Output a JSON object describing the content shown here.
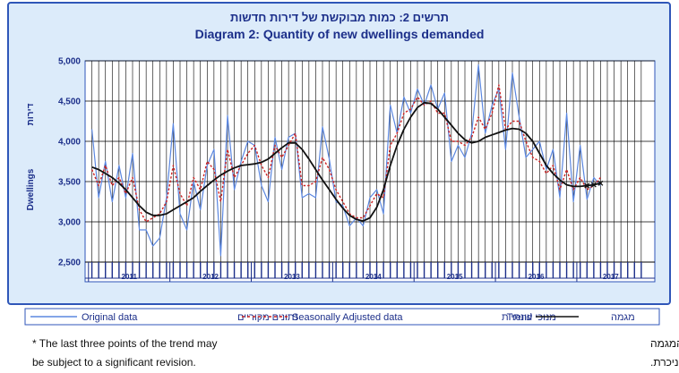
{
  "chart_data": {
    "type": "line",
    "title_he": "תרשים 2: כמות מבוקשת של דירות חדשות",
    "title_en": "Diagram 2: Quantity of new dwellings demanded",
    "ylabel_en": "Dwellings",
    "ylabel_he": "דירות",
    "ylim": [
      2500,
      5000
    ],
    "yticks": [
      2500,
      3000,
      3500,
      4000,
      4500,
      5000
    ],
    "ytick_labels": [
      "2,500",
      "3,000",
      "3,500",
      "4,000",
      "4,500",
      "5,000"
    ],
    "years": [
      "2011",
      "2012",
      "2013",
      "2014",
      "2015",
      "2016",
      "2017"
    ],
    "months_per_year": 12,
    "months_in_last_year": 10,
    "legend_placement": "bottom",
    "series": [
      {
        "name_en": "Original data",
        "name_he": "נתונים מקוריים",
        "color": "#5b87e0",
        "style": "solid",
        "values": [
          4150,
          3300,
          3750,
          3250,
          3700,
          3300,
          3850,
          2900,
          2900,
          2700,
          2800,
          3300,
          4220,
          3100,
          2900,
          3500,
          3150,
          3700,
          3900,
          2580,
          4320,
          3400,
          3750,
          4000,
          3950,
          3450,
          3250,
          4050,
          3650,
          4050,
          4100,
          3300,
          3350,
          3300,
          4180,
          3780,
          3250,
          3200,
          2950,
          3050,
          2950,
          3300,
          3400,
          3100,
          4450,
          4100,
          4550,
          4350,
          4650,
          4450,
          4700,
          4400,
          4600,
          3750,
          3950,
          3800,
          4100,
          4950,
          4100,
          4450,
          4650,
          3900,
          4850,
          4300,
          3800,
          3900,
          4000,
          3650,
          3900,
          3300,
          4350,
          3250,
          3950,
          3280,
          3550,
          3450
        ]
      },
      {
        "name_en": "Seasonally Adjusted data",
        "name_he": "מנוכי עונתיות",
        "color": "#cc2222",
        "style": "dotted",
        "values": [
          3650,
          3450,
          3700,
          3450,
          3550,
          3350,
          3550,
          3150,
          3000,
          3050,
          3100,
          3250,
          3700,
          3350,
          3200,
          3550,
          3400,
          3750,
          3650,
          3250,
          3900,
          3550,
          3700,
          3850,
          3950,
          3700,
          3550,
          3950,
          3800,
          3950,
          4100,
          3450,
          3450,
          3500,
          3800,
          3650,
          3400,
          3250,
          3100,
          3050,
          3050,
          3200,
          3350,
          3300,
          3950,
          4100,
          4350,
          4400,
          4550,
          4450,
          4500,
          4350,
          4350,
          4000,
          4000,
          3950,
          4050,
          4300,
          4150,
          4350,
          4700,
          4150,
          4250,
          4250,
          4000,
          3800,
          3750,
          3600,
          3700,
          3400,
          3650,
          3400,
          3550,
          3400,
          3450,
          3550
        ]
      },
      {
        "name_en": "Trend",
        "name_he": "מגמה",
        "color": "#111111",
        "style": "solid",
        "values": [
          3680,
          3650,
          3600,
          3550,
          3480,
          3400,
          3300,
          3200,
          3120,
          3080,
          3080,
          3100,
          3150,
          3200,
          3250,
          3300,
          3380,
          3450,
          3520,
          3580,
          3630,
          3670,
          3700,
          3710,
          3720,
          3740,
          3780,
          3850,
          3920,
          3980,
          3980,
          3900,
          3780,
          3650,
          3520,
          3400,
          3280,
          3170,
          3080,
          3030,
          3010,
          3050,
          3180,
          3400,
          3700,
          3950,
          4150,
          4300,
          4420,
          4480,
          4470,
          4400,
          4300,
          4200,
          4100,
          4020,
          3980,
          4000,
          4050,
          4080,
          4110,
          4140,
          4160,
          4150,
          4100,
          4000,
          3850,
          3700,
          3600,
          3520,
          3460,
          3440,
          3440,
          3450,
          3460,
          3480
        ],
        "revised_last_points": 3
      }
    ]
  },
  "legend": {
    "original_en": "Original data",
    "original_he": "נתונים מקוריים",
    "sa_en": "Seasonally Adjusted data",
    "sa_he": "מנוכי עונתיות",
    "trend_en": "Trend",
    "trend_he": "מגמה"
  },
  "footnote": {
    "en_line1": "* The last three points of the trend may",
    "en_line2": "be subject to a significant revision.",
    "he_line1": "* שלושת האומדנים האחרונים של המגמה",
    "he_line2": "עשויים להשתנות במידה ניכרת."
  },
  "colors": {
    "frame": "#2f56b8",
    "plot_bg": "#ffffff",
    "outer_bg": "#dcebfa",
    "grid": "#000000",
    "text": "#1c2f8a"
  }
}
